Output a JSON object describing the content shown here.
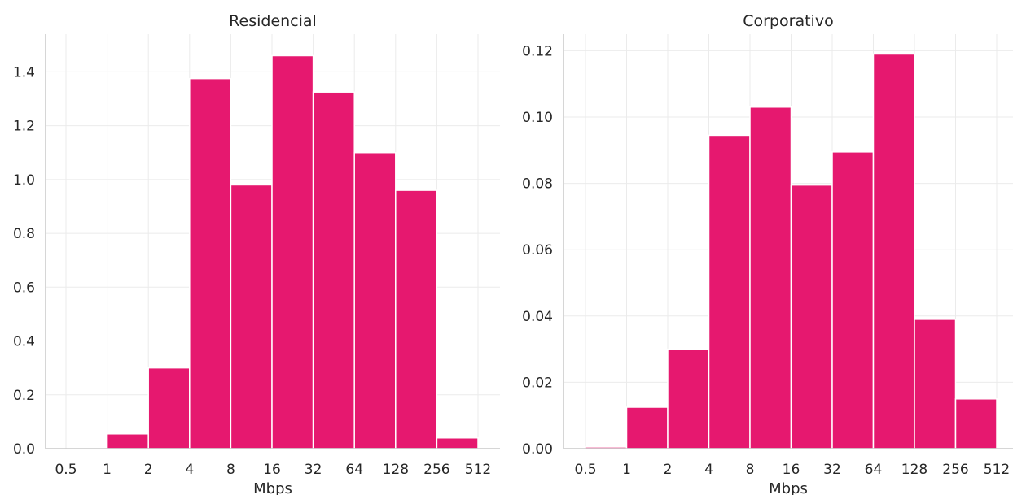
{
  "chart_data": [
    {
      "type": "bar",
      "title": "Residencial",
      "xlabel": "Mbps",
      "ylabel": "",
      "x_scale": "log2",
      "x_ticks": [
        "0.5",
        "1",
        "2",
        "4",
        "8",
        "16",
        "32",
        "64",
        "128",
        "256",
        "512"
      ],
      "bin_edges": [
        0.5,
        1,
        2,
        4,
        8,
        16,
        32,
        64,
        128,
        256,
        512
      ],
      "values": [
        0.0,
        0.055,
        0.3,
        1.375,
        0.98,
        1.46,
        1.325,
        1.1,
        0.96,
        0.04
      ],
      "y_ticks": [
        "0.0",
        "0.2",
        "0.4",
        "0.6",
        "0.8",
        "1.0",
        "1.2",
        "1.4"
      ],
      "ylim": [
        0,
        1.54
      ],
      "grid": true,
      "bar_color": "#e6186f"
    },
    {
      "type": "bar",
      "title": "Corporativo",
      "xlabel": "Mbps",
      "ylabel": "",
      "x_scale": "log2",
      "x_ticks": [
        "0.5",
        "1",
        "2",
        "4",
        "8",
        "16",
        "32",
        "64",
        "128",
        "256",
        "512"
      ],
      "bin_edges": [
        0.5,
        1,
        2,
        4,
        8,
        16,
        32,
        64,
        128,
        256,
        512
      ],
      "values": [
        0.0005,
        0.0125,
        0.03,
        0.0945,
        0.103,
        0.0795,
        0.0895,
        0.119,
        0.039,
        0.015
      ],
      "y_ticks": [
        "0.00",
        "0.02",
        "0.04",
        "0.06",
        "0.08",
        "0.10",
        "0.12"
      ],
      "ylim": [
        0,
        0.125
      ],
      "grid": true,
      "bar_color": "#e6186f"
    }
  ]
}
